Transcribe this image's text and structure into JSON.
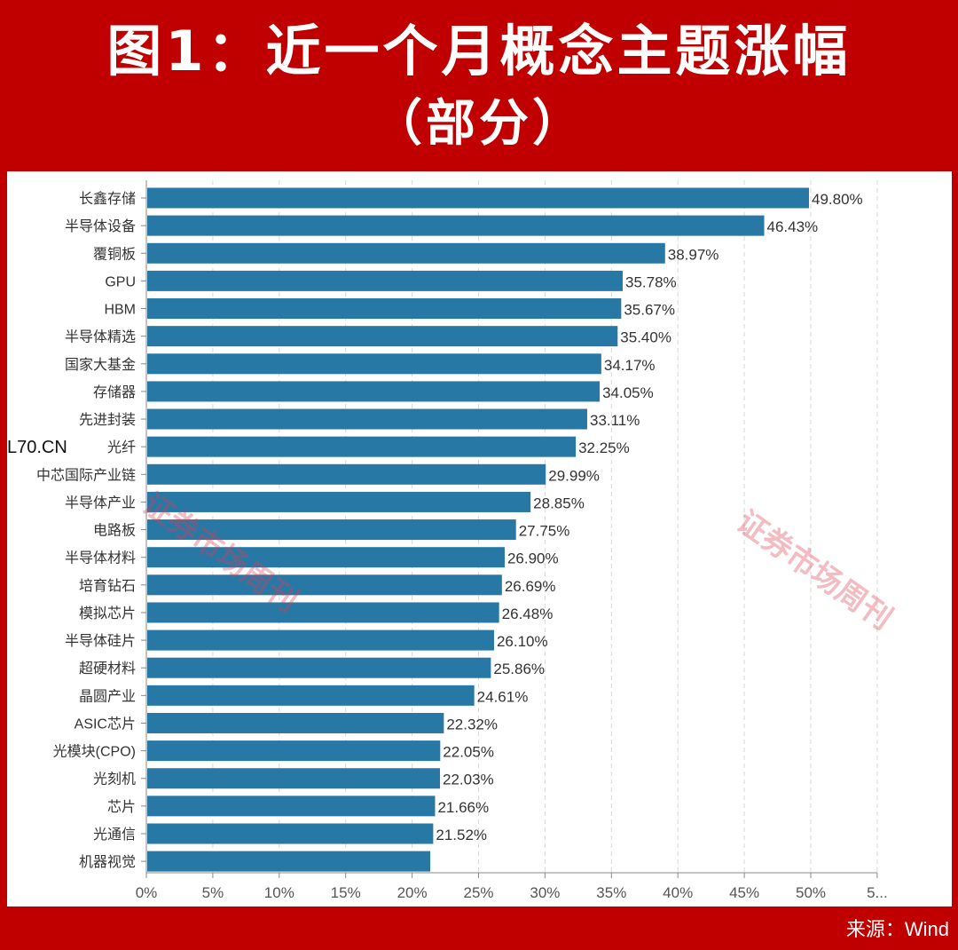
{
  "header": {
    "title_line1": "图1：近一个月概念主题涨幅",
    "title_line2": "（部分）"
  },
  "footer": {
    "source": "来源：Wind"
  },
  "watermark": {
    "site": "L70.CN",
    "stamp": "证券市场周刊"
  },
  "colors": {
    "bar": "#2878a6",
    "background": "#c00000",
    "panel": "#ffffff",
    "grid": "#d8d8d8"
  },
  "chart_data": {
    "type": "bar",
    "orientation": "horizontal",
    "categories": [
      "长鑫存储",
      "半导体设备",
      "覆铜板",
      "GPU",
      "HBM",
      "半导体精选",
      "国家大基金",
      "存储器",
      "先进封装",
      "光纤",
      "中芯国际产业链",
      "半导体产业",
      "电路板",
      "半导体材料",
      "培育钻石",
      "模拟芯片",
      "半导体硅片",
      "超硬材料",
      "晶圆产业",
      "ASIC芯片",
      "光模块(CPO)",
      "光刻机",
      "芯片",
      "光通信",
      "机器视觉"
    ],
    "values": [
      49.8,
      46.43,
      38.97,
      35.78,
      35.67,
      35.4,
      34.17,
      34.05,
      33.11,
      32.25,
      29.99,
      28.85,
      27.75,
      26.9,
      26.69,
      26.48,
      26.1,
      25.86,
      24.61,
      22.32,
      22.05,
      22.03,
      21.66,
      21.52,
      21.3
    ],
    "data_labels": [
      "49.80%",
      "46.43%",
      "38.97%",
      "35.78%",
      "35.67%",
      "35.40%",
      "34.17%",
      "34.05%",
      "33.11%",
      "32.25%",
      "29.99%",
      "28.85%",
      "27.75%",
      "26.90%",
      "26.69%",
      "26.48%",
      "26.10%",
      "25.86%",
      "24.61%",
      "22.32%",
      "22.05%",
      "22.03%",
      "21.66%",
      "21.52%",
      ""
    ],
    "x_ticks": [
      "0%",
      "5%",
      "10%",
      "15%",
      "20%",
      "25%",
      "30%",
      "35%",
      "40%",
      "45%",
      "50%",
      "5..."
    ],
    "xlim": [
      0,
      55
    ],
    "grid": true,
    "grid_style": "dashed vertical"
  }
}
